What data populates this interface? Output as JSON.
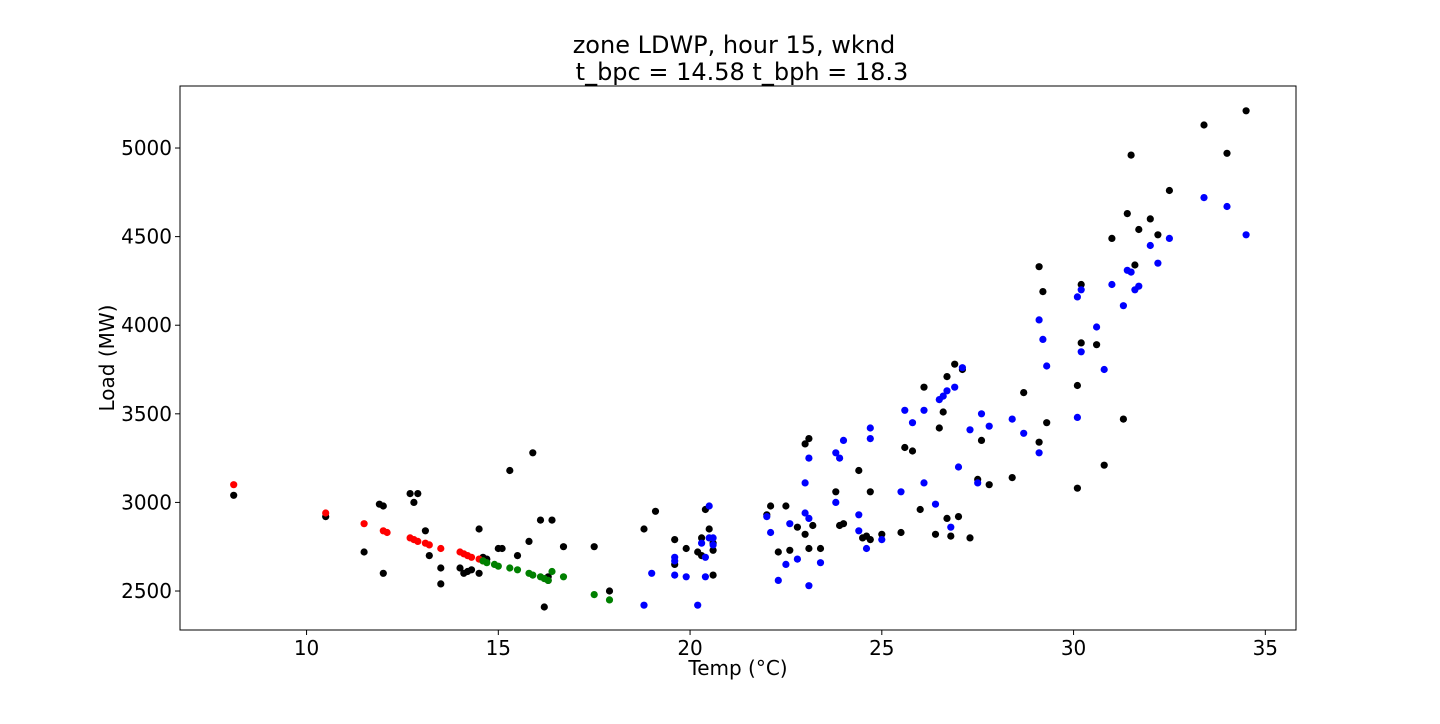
{
  "chart_data": {
    "type": "scatter",
    "title_line1": "zone LDWP, hour 15, wknd",
    "title_line2": "t_bpc = 14.58  t_bph = 18.3",
    "xlabel": "Temp (°C)",
    "ylabel": "Load (MW)",
    "xlim": [
      6.7,
      35.8
    ],
    "ylim": [
      2280,
      5350
    ],
    "xticks": [
      10,
      15,
      20,
      25,
      30,
      35
    ],
    "yticks": [
      2500,
      3000,
      3500,
      4000,
      4500,
      5000
    ],
    "grid": false,
    "series": [
      {
        "color": "#000000",
        "points": [
          [
            8.1,
            3040
          ],
          [
            10.5,
            2920
          ],
          [
            11.5,
            2720
          ],
          [
            11.9,
            2990
          ],
          [
            12.0,
            2980
          ],
          [
            12.0,
            2600
          ],
          [
            12.7,
            3050
          ],
          [
            12.8,
            3000
          ],
          [
            12.9,
            3050
          ],
          [
            13.1,
            2840
          ],
          [
            13.2,
            2700
          ],
          [
            13.5,
            2540
          ],
          [
            13.5,
            2630
          ],
          [
            14.0,
            2630
          ],
          [
            14.1,
            2600
          ],
          [
            14.2,
            2610
          ],
          [
            14.3,
            2620
          ],
          [
            14.5,
            2850
          ],
          [
            14.5,
            2600
          ],
          [
            14.6,
            2690
          ],
          [
            14.7,
            2680
          ],
          [
            15.0,
            2740
          ],
          [
            15.1,
            2740
          ],
          [
            15.3,
            3180
          ],
          [
            15.5,
            2700
          ],
          [
            15.8,
            2780
          ],
          [
            15.9,
            3280
          ],
          [
            16.1,
            2900
          ],
          [
            16.2,
            2410
          ],
          [
            16.3,
            2580
          ],
          [
            16.3,
            2560
          ],
          [
            16.4,
            2900
          ],
          [
            16.7,
            2750
          ],
          [
            17.5,
            2750
          ],
          [
            17.9,
            2500
          ],
          [
            18.8,
            2850
          ],
          [
            19.1,
            2950
          ],
          [
            19.6,
            2650
          ],
          [
            19.6,
            2790
          ],
          [
            19.9,
            2740
          ],
          [
            20.2,
            2720
          ],
          [
            20.3,
            2800
          ],
          [
            20.3,
            2700
          ],
          [
            20.4,
            2960
          ],
          [
            20.5,
            2850
          ],
          [
            20.6,
            2770
          ],
          [
            20.6,
            2590
          ],
          [
            20.6,
            2730
          ],
          [
            22.0,
            2930
          ],
          [
            22.1,
            2980
          ],
          [
            22.3,
            2720
          ],
          [
            22.5,
            2980
          ],
          [
            22.6,
            2730
          ],
          [
            22.8,
            2860
          ],
          [
            23.0,
            2820
          ],
          [
            23.0,
            3330
          ],
          [
            23.1,
            3360
          ],
          [
            23.1,
            2740
          ],
          [
            23.2,
            2870
          ],
          [
            23.4,
            2740
          ],
          [
            23.8,
            3060
          ],
          [
            23.9,
            2870
          ],
          [
            24.0,
            2880
          ],
          [
            24.4,
            3180
          ],
          [
            24.5,
            2800
          ],
          [
            24.6,
            2810
          ],
          [
            24.7,
            3060
          ],
          [
            24.7,
            2790
          ],
          [
            25.0,
            2820
          ],
          [
            25.5,
            2830
          ],
          [
            25.6,
            3310
          ],
          [
            25.8,
            3290
          ],
          [
            26.0,
            2960
          ],
          [
            26.1,
            3650
          ],
          [
            26.4,
            2820
          ],
          [
            26.5,
            3420
          ],
          [
            26.6,
            3510
          ],
          [
            26.7,
            3710
          ],
          [
            26.7,
            2910
          ],
          [
            26.8,
            2810
          ],
          [
            26.9,
            3780
          ],
          [
            27.0,
            2920
          ],
          [
            27.1,
            3750
          ],
          [
            27.3,
            2800
          ],
          [
            27.5,
            3130
          ],
          [
            27.6,
            3350
          ],
          [
            27.8,
            3100
          ],
          [
            28.4,
            3140
          ],
          [
            28.7,
            3620
          ],
          [
            29.1,
            4330
          ],
          [
            29.1,
            3340
          ],
          [
            29.2,
            4190
          ],
          [
            29.3,
            3450
          ],
          [
            30.1,
            3660
          ],
          [
            30.1,
            3080
          ],
          [
            30.2,
            4230
          ],
          [
            30.2,
            3900
          ],
          [
            30.6,
            3890
          ],
          [
            30.8,
            3210
          ],
          [
            31.0,
            4490
          ],
          [
            31.3,
            3470
          ],
          [
            31.4,
            4630
          ],
          [
            31.5,
            4960
          ],
          [
            31.6,
            4340
          ],
          [
            31.7,
            4540
          ],
          [
            32.0,
            4600
          ],
          [
            32.2,
            4510
          ],
          [
            32.5,
            4760
          ],
          [
            33.4,
            5130
          ],
          [
            34.0,
            4970
          ],
          [
            34.5,
            5210
          ]
        ]
      },
      {
        "color": "#ff0000",
        "points": [
          [
            8.1,
            3100
          ],
          [
            10.5,
            2940
          ],
          [
            11.5,
            2880
          ],
          [
            12.0,
            2840
          ],
          [
            12.1,
            2830
          ],
          [
            12.7,
            2800
          ],
          [
            12.8,
            2790
          ],
          [
            12.9,
            2780
          ],
          [
            13.1,
            2770
          ],
          [
            13.2,
            2760
          ],
          [
            13.5,
            2740
          ],
          [
            14.0,
            2720
          ],
          [
            14.1,
            2710
          ],
          [
            14.2,
            2700
          ],
          [
            14.3,
            2690
          ],
          [
            14.5,
            2680
          ],
          [
            14.6,
            2670
          ]
        ]
      },
      {
        "color": "#008000",
        "points": [
          [
            14.6,
            2670
          ],
          [
            14.7,
            2660
          ],
          [
            14.9,
            2650
          ],
          [
            15.0,
            2640
          ],
          [
            15.3,
            2630
          ],
          [
            15.5,
            2620
          ],
          [
            15.8,
            2600
          ],
          [
            15.9,
            2590
          ],
          [
            16.1,
            2580
          ],
          [
            16.2,
            2570
          ],
          [
            16.3,
            2560
          ],
          [
            16.4,
            2610
          ],
          [
            16.7,
            2580
          ],
          [
            17.5,
            2480
          ],
          [
            17.9,
            2450
          ]
        ]
      },
      {
        "color": "#0000ff",
        "points": [
          [
            18.8,
            2420
          ],
          [
            19.0,
            2600
          ],
          [
            19.6,
            2690
          ],
          [
            19.6,
            2590
          ],
          [
            19.6,
            2670
          ],
          [
            19.9,
            2580
          ],
          [
            20.2,
            2420
          ],
          [
            20.3,
            2770
          ],
          [
            20.4,
            2690
          ],
          [
            20.4,
            2580
          ],
          [
            20.5,
            2980
          ],
          [
            20.5,
            2800
          ],
          [
            20.6,
            2800
          ],
          [
            20.6,
            2760
          ],
          [
            22.0,
            2920
          ],
          [
            22.1,
            2830
          ],
          [
            22.3,
            2560
          ],
          [
            22.5,
            2650
          ],
          [
            22.6,
            2880
          ],
          [
            22.8,
            2680
          ],
          [
            23.0,
            2940
          ],
          [
            23.0,
            3110
          ],
          [
            23.1,
            2910
          ],
          [
            23.1,
            2530
          ],
          [
            23.1,
            3250
          ],
          [
            23.4,
            2660
          ],
          [
            23.8,
            3000
          ],
          [
            23.8,
            3280
          ],
          [
            23.9,
            3250
          ],
          [
            24.0,
            3350
          ],
          [
            24.4,
            2930
          ],
          [
            24.4,
            2840
          ],
          [
            24.6,
            2740
          ],
          [
            24.7,
            3360
          ],
          [
            24.7,
            3420
          ],
          [
            25.0,
            2790
          ],
          [
            25.5,
            3060
          ],
          [
            25.6,
            3520
          ],
          [
            25.8,
            3450
          ],
          [
            26.1,
            3110
          ],
          [
            26.1,
            3520
          ],
          [
            26.4,
            2990
          ],
          [
            26.5,
            3580
          ],
          [
            26.6,
            3600
          ],
          [
            26.7,
            3630
          ],
          [
            26.8,
            2860
          ],
          [
            26.9,
            3650
          ],
          [
            27.0,
            3200
          ],
          [
            27.1,
            3760
          ],
          [
            27.3,
            3410
          ],
          [
            27.5,
            3110
          ],
          [
            27.6,
            3500
          ],
          [
            27.8,
            3430
          ],
          [
            28.4,
            3470
          ],
          [
            28.7,
            3390
          ],
          [
            29.1,
            3280
          ],
          [
            29.1,
            4030
          ],
          [
            29.2,
            3920
          ],
          [
            29.3,
            3770
          ],
          [
            30.1,
            3480
          ],
          [
            30.1,
            4160
          ],
          [
            30.2,
            3850
          ],
          [
            30.2,
            4200
          ],
          [
            30.6,
            3990
          ],
          [
            30.8,
            3750
          ],
          [
            31.0,
            4230
          ],
          [
            31.3,
            4110
          ],
          [
            31.4,
            4310
          ],
          [
            31.5,
            4300
          ],
          [
            31.6,
            4200
          ],
          [
            31.7,
            4220
          ],
          [
            32.0,
            4450
          ],
          [
            32.2,
            4350
          ],
          [
            32.5,
            4490
          ],
          [
            33.4,
            4720
          ],
          [
            34.0,
            4670
          ],
          [
            34.5,
            4510
          ]
        ]
      }
    ]
  }
}
